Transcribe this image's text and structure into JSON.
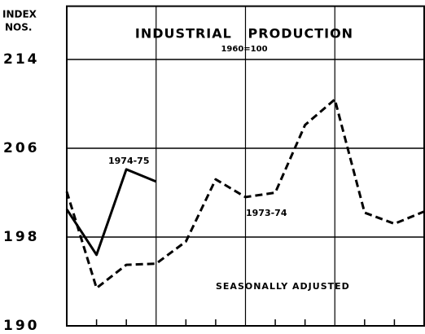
{
  "chart_data": {
    "type": "line",
    "title": "INDUSTRIAL   PRODUCTION",
    "subtitle": "1960=100",
    "ylabel": [
      "INDEX",
      "NOS."
    ],
    "annotation": "SEASONALLY ADJUSTED",
    "categories": [
      null,
      null,
      null,
      null,
      null,
      null,
      null,
      null,
      null,
      null,
      null,
      null,
      null
    ],
    "series": [
      {
        "name": "1974-75",
        "color": "#000000",
        "style": "solid",
        "values": [
          200.5,
          196.4,
          204.1,
          203.0,
          null,
          null,
          null,
          null,
          null,
          null,
          null,
          null,
          null
        ]
      },
      {
        "name": "1973-74",
        "color": "#000000",
        "style": "dashed",
        "values": [
          202.1,
          193.4,
          195.5,
          195.6,
          197.6,
          203.2,
          201.6,
          202.0,
          208.1,
          210.4,
          200.2,
          199.2,
          200.3
        ]
      }
    ],
    "ylim": [
      190,
      218.8
    ],
    "yticks": [
      190,
      198,
      206,
      214
    ],
    "grid": true
  }
}
